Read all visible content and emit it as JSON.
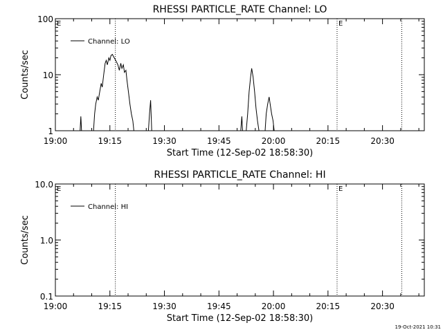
{
  "footer": {
    "timestamp": "19-Oct-2021 10:31"
  },
  "chart_data": [
    {
      "type": "line",
      "title": "RHESSI PARTICLE_RATE Channel: LO",
      "xlabel": "Start Time (12-Sep-02 18:58:30)",
      "ylabel": "Counts/sec",
      "yscale": "log",
      "ylim": [
        1,
        100
      ],
      "yticks": [
        1,
        10,
        100
      ],
      "ytick_labels": [
        "1",
        "10",
        "100"
      ],
      "xlim_minutes": [
        0,
        101.5
      ],
      "xticks_minutes": [
        0,
        15,
        30,
        45,
        60,
        75,
        90
      ],
      "xtick_labels": [
        "19:00",
        "19:15",
        "19:30",
        "19:45",
        "20:00",
        "20:15",
        "20:30"
      ],
      "vlines_minutes": [
        16.5,
        77.5,
        95.3
      ],
      "markers": [
        {
          "label": "E",
          "x_minutes": 0
        },
        {
          "label": "E",
          "x_minutes": 77.5
        }
      ],
      "legend": {
        "position": "top-left",
        "label": "Channel: LO"
      },
      "series": [
        {
          "name": "Channel: LO",
          "x_minutes": [
            6.8,
            7.0,
            7.2,
            10.5,
            10.8,
            11.1,
            11.5,
            11.8,
            12.2,
            12.6,
            12.9,
            13.3,
            13.7,
            14.0,
            14.3,
            14.7,
            15.0,
            15.3,
            15.7,
            16.0,
            16.4,
            16.8,
            17.2,
            17.6,
            18.0,
            18.3,
            18.7,
            19.0,
            19.4,
            19.7,
            20.1,
            20.5,
            20.9,
            21.3,
            21.6,
            22.0,
            22.4,
            25.6,
            25.9,
            26.2,
            26.5,
            51.0,
            51.3,
            51.5,
            52.5,
            52.9,
            53.3,
            53.7,
            54.0,
            54.4,
            54.8,
            55.2,
            55.6,
            56.0,
            56.4,
            57.7,
            58.0,
            58.4,
            58.8,
            59.1,
            59.5,
            59.9,
            60.2,
            60.5
          ],
          "values": [
            1,
            1.8,
            1,
            1,
            2,
            3,
            4,
            3.5,
            5,
            7,
            6,
            10,
            16,
            18,
            15,
            20,
            18,
            22,
            23,
            21,
            19,
            17,
            15,
            12,
            16,
            13,
            15,
            11,
            12,
            8,
            5,
            3,
            2,
            1.5,
            1,
            1,
            1,
            1,
            2,
            3.5,
            1,
            1,
            1.8,
            1,
            1,
            2,
            5,
            9,
            13,
            9,
            5,
            2.5,
            1.5,
            1,
            1,
            1,
            2,
            3,
            4,
            3,
            2,
            1.5,
            1,
            1
          ]
        }
      ]
    },
    {
      "type": "line",
      "title": "RHESSI PARTICLE_RATE Channel: HI",
      "xlabel": "Start Time (12-Sep-02 18:58:30)",
      "ylabel": "Counts/sec",
      "yscale": "log",
      "ylim": [
        0.1,
        10
      ],
      "yticks": [
        0.1,
        1,
        10
      ],
      "ytick_labels": [
        "0.1",
        "1.0",
        "10.0"
      ],
      "xlim_minutes": [
        0,
        101.5
      ],
      "xticks_minutes": [
        0,
        15,
        30,
        45,
        60,
        75,
        90
      ],
      "xtick_labels": [
        "19:00",
        "19:15",
        "19:30",
        "19:45",
        "20:00",
        "20:15",
        "20:30"
      ],
      "vlines_minutes": [
        16.5,
        77.5,
        95.3
      ],
      "markers": [
        {
          "label": "E",
          "x_minutes": 0
        },
        {
          "label": "E",
          "x_minutes": 77.5
        }
      ],
      "legend": {
        "position": "top-left",
        "label": "Channel: HI"
      },
      "series": [
        {
          "name": "Channel: HI",
          "x_minutes": [],
          "values": []
        }
      ]
    }
  ]
}
